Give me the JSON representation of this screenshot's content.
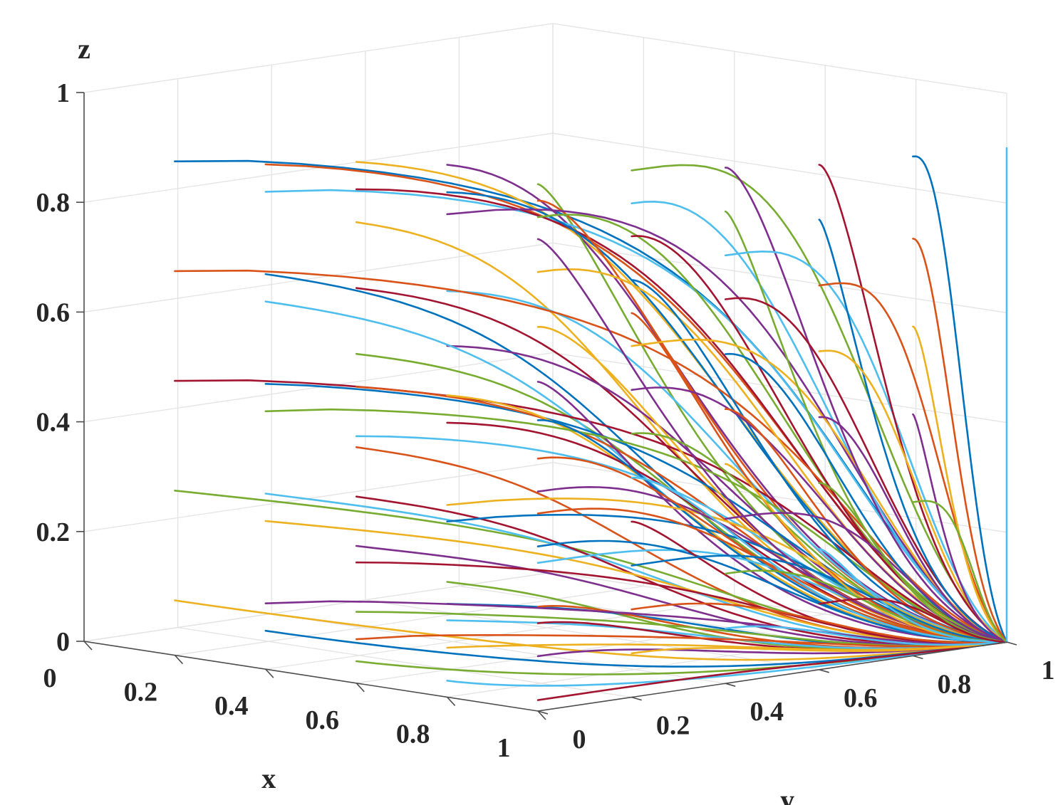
{
  "chart_data": {
    "type": "line",
    "projection": "3d",
    "title": "",
    "xlabel": "x",
    "ylabel": "y",
    "zlabel": "z",
    "xlim": [
      0,
      1
    ],
    "ylim": [
      0,
      1
    ],
    "zlim": [
      0,
      1
    ],
    "grid": true,
    "legend": "none",
    "x_ticks": [
      "0",
      "0.2",
      "0.4",
      "0.6",
      "0.8",
      "1"
    ],
    "y_ticks": [
      "0",
      "0.2",
      "0.4",
      "0.6",
      "0.8",
      "1"
    ],
    "z_ticks": [
      "0",
      "0.2",
      "0.4",
      "0.6",
      "0.8",
      "1"
    ],
    "colors": [
      "#0072BD",
      "#D95319",
      "#EDB120",
      "#7E2F8E",
      "#77AC30",
      "#4DBEEE",
      "#A2142F"
    ],
    "convergence_point": [
      1,
      1,
      0
    ],
    "trajectory_starts": [
      [
        0.2,
        0.0,
        0.9
      ],
      [
        0.4,
        0.0,
        0.92
      ],
      [
        0.6,
        0.0,
        0.95
      ],
      [
        0.8,
        0.0,
        0.97
      ],
      [
        1.0,
        0.0,
        0.96
      ],
      [
        0.4,
        0.0,
        0.87
      ],
      [
        0.6,
        0.0,
        0.9
      ],
      [
        0.8,
        0.0,
        0.92
      ],
      [
        1.0,
        0.0,
        0.93
      ],
      [
        0.6,
        0.0,
        0.84
      ],
      [
        0.8,
        0.0,
        0.88
      ],
      [
        1.0,
        0.0,
        0.9
      ],
      [
        0.8,
        0.0,
        0.74
      ],
      [
        0.6,
        0.0,
        0.72
      ],
      [
        0.4,
        0.0,
        0.72
      ],
      [
        0.2,
        0.0,
        0.7
      ],
      [
        1.0,
        0.0,
        0.8
      ],
      [
        0.8,
        0.0,
        0.64
      ],
      [
        0.6,
        0.0,
        0.6
      ],
      [
        0.4,
        0.0,
        0.67
      ],
      [
        0.2,
        0.0,
        0.5
      ],
      [
        0.4,
        0.0,
        0.52
      ],
      [
        0.6,
        0.0,
        0.54
      ],
      [
        0.8,
        0.0,
        0.55
      ],
      [
        1.0,
        0.0,
        0.6
      ],
      [
        0.4,
        0.0,
        0.47
      ],
      [
        0.6,
        0.0,
        0.45
      ],
      [
        0.8,
        0.0,
        0.5
      ],
      [
        1.0,
        0.0,
        0.53
      ],
      [
        0.6,
        0.0,
        0.43
      ],
      [
        0.8,
        0.0,
        0.35
      ],
      [
        1.0,
        0.0,
        0.4
      ],
      [
        0.2,
        0.0,
        0.3
      ],
      [
        0.4,
        0.0,
        0.32
      ],
      [
        0.6,
        0.0,
        0.34
      ],
      [
        0.8,
        0.0,
        0.32
      ],
      [
        1.0,
        0.0,
        0.36
      ],
      [
        0.4,
        0.0,
        0.27
      ],
      [
        0.6,
        0.0,
        0.25
      ],
      [
        0.8,
        0.0,
        0.21
      ],
      [
        1.0,
        0.0,
        0.27
      ],
      [
        0.6,
        0.0,
        0.22
      ],
      [
        0.8,
        0.0,
        0.17
      ],
      [
        1.0,
        0.0,
        0.19
      ],
      [
        0.2,
        0.0,
        0.1
      ],
      [
        0.4,
        0.0,
        0.12
      ],
      [
        0.6,
        0.0,
        0.13
      ],
      [
        0.8,
        0.0,
        0.14
      ],
      [
        1.0,
        0.0,
        0.16
      ],
      [
        0.4,
        0.0,
        0.07
      ],
      [
        0.6,
        0.0,
        0.08
      ],
      [
        0.8,
        0.0,
        0.09
      ],
      [
        1.0,
        0.0,
        0.1
      ],
      [
        0.6,
        0.0,
        0.04
      ],
      [
        0.8,
        0.0,
        0.03
      ],
      [
        1.0,
        0.0,
        0.02
      ],
      [
        1.0,
        0.0,
        0.3
      ],
      [
        1.0,
        0.0,
        0.46
      ],
      [
        1.0,
        0.0,
        0.7
      ],
      [
        1.0,
        0.0,
        0.86
      ],
      [
        1.0,
        0.2,
        0.96
      ],
      [
        1.0,
        0.2,
        0.9
      ],
      [
        1.0,
        0.2,
        0.84
      ],
      [
        1.0,
        0.2,
        0.76
      ],
      [
        1.0,
        0.2,
        0.7
      ],
      [
        1.0,
        0.2,
        0.64
      ],
      [
        1.0,
        0.2,
        0.56
      ],
      [
        1.0,
        0.2,
        0.48
      ],
      [
        1.0,
        0.2,
        0.4
      ],
      [
        1.0,
        0.2,
        0.32
      ],
      [
        1.0,
        0.2,
        0.24
      ],
      [
        1.0,
        0.2,
        0.16
      ],
      [
        1.0,
        0.2,
        0.08
      ],
      [
        1.0,
        0.4,
        0.94
      ],
      [
        1.0,
        0.4,
        0.86
      ],
      [
        1.0,
        0.4,
        0.78
      ],
      [
        1.0,
        0.4,
        0.7
      ],
      [
        1.0,
        0.4,
        0.6
      ],
      [
        1.0,
        0.4,
        0.5
      ],
      [
        1.0,
        0.4,
        0.4
      ],
      [
        1.0,
        0.4,
        0.3
      ],
      [
        1.0,
        0.4,
        0.2
      ],
      [
        1.0,
        0.4,
        0.1
      ],
      [
        1.0,
        0.6,
        0.92
      ],
      [
        1.0,
        0.6,
        0.82
      ],
      [
        1.0,
        0.6,
        0.7
      ],
      [
        1.0,
        0.6,
        0.58
      ],
      [
        1.0,
        0.6,
        0.46
      ],
      [
        1.0,
        0.6,
        0.34
      ],
      [
        1.0,
        0.6,
        0.22
      ],
      [
        1.0,
        0.6,
        0.12
      ],
      [
        1.0,
        0.8,
        0.91
      ],
      [
        1.0,
        0.8,
        0.76
      ],
      [
        1.0,
        0.8,
        0.6
      ],
      [
        1.0,
        0.8,
        0.44
      ],
      [
        1.0,
        0.8,
        0.28
      ],
      [
        1.0,
        1.0,
        0.9
      ]
    ]
  }
}
